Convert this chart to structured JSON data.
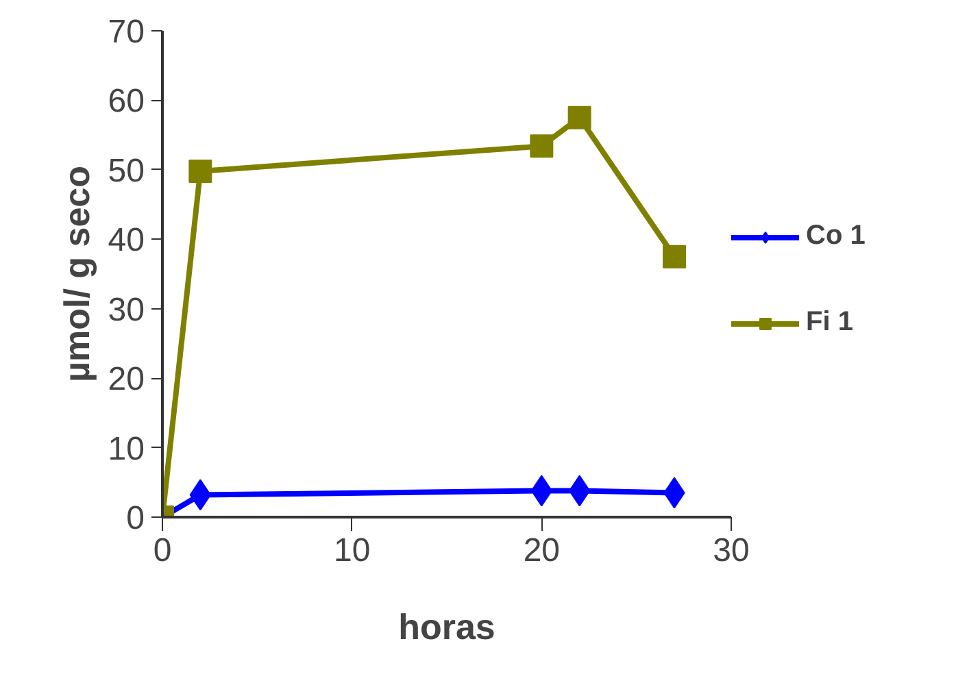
{
  "chart_data": {
    "type": "line",
    "xlabel": "horas",
    "ylabel": "µmol/ g seco",
    "xlim": [
      0,
      30
    ],
    "ylim": [
      0,
      70
    ],
    "xticks": [
      0,
      10,
      20,
      30
    ],
    "yticks": [
      0,
      10,
      20,
      30,
      40,
      50,
      60,
      70
    ],
    "grid": false,
    "legend": "right",
    "line_style": "solid",
    "series": [
      {
        "name": "Co 1",
        "color": "#0000ff",
        "marker": "diamond",
        "x": [
          0,
          2,
          20,
          22,
          27
        ],
        "values": [
          0,
          3.2,
          3.8,
          3.8,
          3.5
        ]
      },
      {
        "name": "Fi 1",
        "color": "#808000",
        "marker": "square",
        "x": [
          0,
          2,
          20,
          22,
          27
        ],
        "values": [
          0,
          49.8,
          53.4,
          57.5,
          37.5
        ]
      }
    ]
  }
}
